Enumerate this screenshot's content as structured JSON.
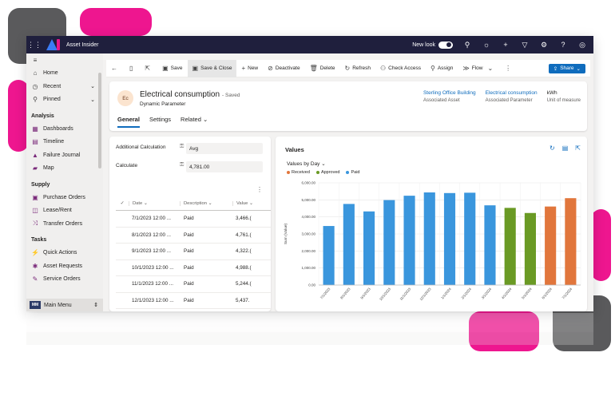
{
  "topbar": {
    "app_name": "Asset Insider",
    "new_look_label": "New look"
  },
  "sidebar": {
    "items_top": [
      {
        "label": "Home",
        "icon": "home-icon"
      },
      {
        "label": "Recent",
        "icon": "clock-icon"
      },
      {
        "label": "Pinned",
        "icon": "pin-icon"
      }
    ],
    "sections": [
      {
        "title": "Analysis",
        "items": [
          "Dashboards",
          "Timeline",
          "Failure Journal",
          "Map"
        ]
      },
      {
        "title": "Supply",
        "items": [
          "Purchase Orders",
          "Lease/Rent",
          "Transfer Orders"
        ]
      },
      {
        "title": "Tasks",
        "items": [
          "Quick Actions",
          "Asset Requests",
          "Service Orders"
        ]
      }
    ],
    "main_menu_badge": "MM",
    "main_menu_label": "Main Menu"
  },
  "commands": {
    "save": "Save",
    "save_close": "Save & Close",
    "new": "New",
    "deactivate": "Deactivate",
    "delete": "Delete",
    "refresh": "Refresh",
    "check_access": "Check Access",
    "assign": "Assign",
    "flow": "Flow",
    "share": "Share"
  },
  "record": {
    "initials": "Ec",
    "title": "Electrical consumption",
    "saved": "- Saved",
    "type": "Dynamic Parameter",
    "fields": [
      {
        "value": "Sterling Office Building",
        "label": "Associated Asset"
      },
      {
        "value": "Electrical consumption",
        "label": "Associated Parameter"
      },
      {
        "value": "kWh",
        "label": "Unit of measure"
      }
    ],
    "tabs": [
      "General",
      "Settings",
      "Related"
    ]
  },
  "form": {
    "additional_calc_label": "Additional Calculation",
    "additional_calc_value": "Avg",
    "calculate_label": "Calculate",
    "calculate_value": "4,781.00"
  },
  "grid": {
    "headers": {
      "date": "Date",
      "description": "Description",
      "value": "Value"
    },
    "rows": [
      {
        "date": "7/1/2023 12:00 ...",
        "description": "Paid",
        "value": "3,466.("
      },
      {
        "date": "8/1/2023 12:00 ...",
        "description": "Paid",
        "value": "4,761.("
      },
      {
        "date": "9/1/2023 12:00 ...",
        "description": "Paid",
        "value": "4,322.("
      },
      {
        "date": "10/1/2023 12:00 ...",
        "description": "Paid",
        "value": "4,988.("
      },
      {
        "date": "11/1/2023 12:00 ...",
        "description": "Paid",
        "value": "5,244.("
      },
      {
        "date": "12/1/2023 12:00 ...",
        "description": "Paid",
        "value": "5,437."
      }
    ]
  },
  "chart_panel": {
    "title": "Values",
    "view": "Values by Day"
  },
  "chart_data": {
    "type": "bar",
    "categories": [
      "7/1/2023",
      "8/1/2023",
      "9/1/2023",
      "10/1/2023",
      "11/1/2023",
      "12/1/2023",
      "1/1/2024",
      "2/1/2024",
      "3/1/2024",
      "4/1/2024",
      "5/1/2024",
      "6/1/2024",
      "7/1/2024"
    ],
    "values": [
      3466,
      4761,
      4322,
      4988,
      5244,
      5437,
      5400,
      5420,
      4680,
      4530,
      4230,
      4610,
      5100
    ],
    "status": [
      "Paid",
      "Paid",
      "Paid",
      "Paid",
      "Paid",
      "Paid",
      "Paid",
      "Paid",
      "Paid",
      "Approved",
      "Approved",
      "Received",
      "Received"
    ],
    "legend": [
      {
        "name": "Received",
        "color": "#e1763c"
      },
      {
        "name": "Approved",
        "color": "#6a9a24"
      },
      {
        "name": "Paid",
        "color": "#3a96dd"
      }
    ],
    "ylabel": "Sum (Value)",
    "yticks": [
      "0.00",
      "1,000.00",
      "2,000.00",
      "3,000.00",
      "4,000.00",
      "5,000.00",
      "6,000.00"
    ],
    "ylim": [
      0,
      6000
    ],
    "grid": true,
    "legend_position": "top-left"
  }
}
